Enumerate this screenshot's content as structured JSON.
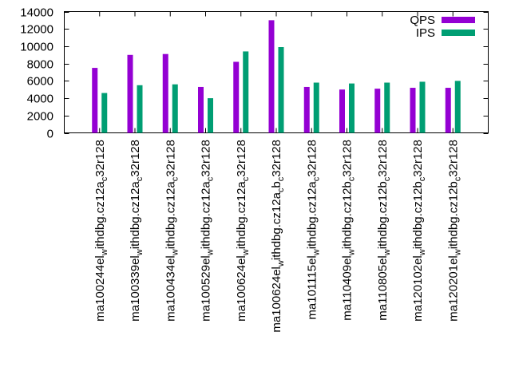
{
  "chart_data": {
    "type": "bar",
    "title": "",
    "xlabel": "",
    "ylabel": "",
    "ylim": [
      0,
      14000
    ],
    "yticks": [
      0,
      2000,
      4000,
      6000,
      8000,
      10000,
      12000,
      14000
    ],
    "grid": false,
    "legend_position": "top-right",
    "categories": [
      {
        "main": "ma100244el",
        "sub1": "w",
        "mid": "ithdbg.cz12a",
        "sub2": "c",
        "tail": "32r128"
      },
      {
        "main": "ma100339el",
        "sub1": "w",
        "mid": "ithdbg.cz12a",
        "sub2": "c",
        "tail": "32r128"
      },
      {
        "main": "ma100434el",
        "sub1": "w",
        "mid": "ithdbg.cz12a",
        "sub2": "c",
        "tail": "32r128"
      },
      {
        "main": "ma100529el",
        "sub1": "w",
        "mid": "ithdbg.cz12a",
        "sub2": "c",
        "tail": "32r128"
      },
      {
        "main": "ma100624el",
        "sub1": "w",
        "mid": "ithdbg.cz12a",
        "sub2": "c",
        "tail": "32r128"
      },
      {
        "main": "ma100624el",
        "sub1": "w",
        "mid": "ithdbg.cz12a",
        "sub2": "c",
        "tail": "b",
        "sub3": "c",
        "tail2": "32r128"
      },
      {
        "main": "ma101115el",
        "sub1": "w",
        "mid": "ithdbg.cz12a",
        "sub2": "c",
        "tail": "32r128"
      },
      {
        "main": "ma110409el",
        "sub1": "w",
        "mid": "ithdbg.cz12b",
        "sub2": "c",
        "tail": "32r128"
      },
      {
        "main": "ma110805el",
        "sub1": "w",
        "mid": "ithdbg.cz12b",
        "sub2": "c",
        "tail": "32r128"
      },
      {
        "main": "ma120102el",
        "sub1": "w",
        "mid": "ithdbg.cz12b",
        "sub2": "c",
        "tail": "32r128"
      },
      {
        "main": "ma120201el",
        "sub1": "w",
        "mid": "ithdbg.cz12b",
        "sub2": "c",
        "tail": "32r128"
      }
    ],
    "series": [
      {
        "name": "QPS",
        "color": "#9400d3",
        "values": [
          7500,
          9000,
          9100,
          5300,
          8200,
          13000,
          5300,
          5000,
          5100,
          5200,
          5200
        ]
      },
      {
        "name": "IPS",
        "color": "#009e73",
        "values": [
          4600,
          5500,
          5600,
          4000,
          9400,
          9900,
          5800,
          5700,
          5800,
          5900,
          6000
        ]
      }
    ]
  }
}
